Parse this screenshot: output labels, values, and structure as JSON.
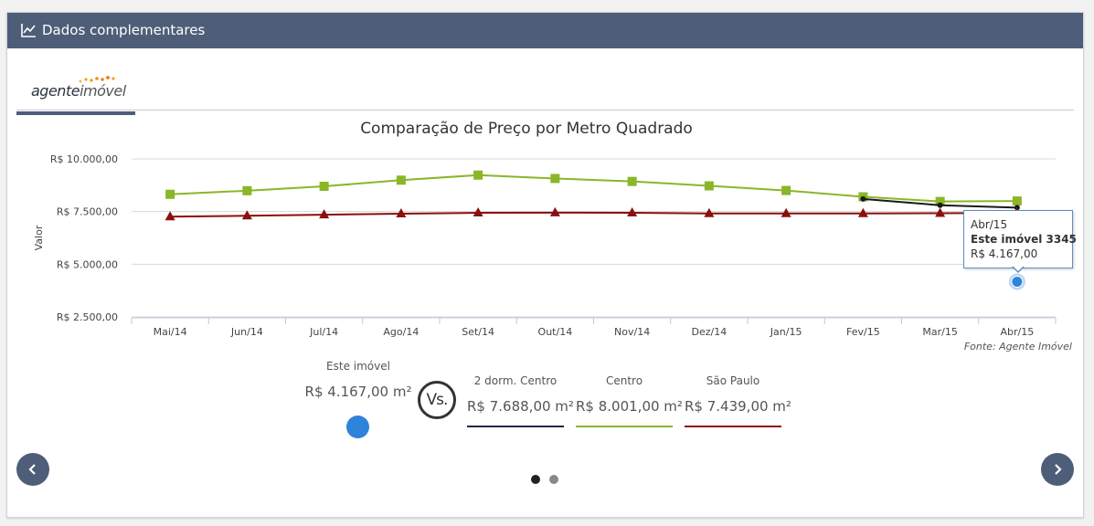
{
  "header": {
    "title": "Dados complementares",
    "icon": "line-chart-icon"
  },
  "tab": {
    "logo_text": "agenteimóvel",
    "logo_part1": "agente",
    "logo_part2": "imóvel"
  },
  "chart_data": {
    "type": "line",
    "title": "Comparação de Preço por Metro Quadrado",
    "ylabel": "Valor",
    "xlabel": "",
    "categories": [
      "Mai/14",
      "Jun/14",
      "Jul/14",
      "Ago/14",
      "Set/14",
      "Out/14",
      "Nov/14",
      "Dez/14",
      "Jan/15",
      "Fev/15",
      "Mar/15",
      "Abr/15"
    ],
    "ytick_labels": [
      "R$ 2.500,00",
      "R$ 5.000,00",
      "R$ 7.500,00",
      "R$ 10.000,00"
    ],
    "ytick_values": [
      2500,
      5000,
      7500,
      10000
    ],
    "ylim": [
      2500,
      10000
    ],
    "grid": true,
    "series": [
      {
        "name": "Centro",
        "color": "#8ab628",
        "marker": "square",
        "values": [
          8320,
          8490,
          8700,
          8990,
          9230,
          9070,
          8930,
          8720,
          8500,
          8200,
          7980,
          8001
        ]
      },
      {
        "name": "2 dorm. Centro",
        "color": "#1a1a1a",
        "marker": "circle",
        "values": [
          null,
          null,
          null,
          null,
          null,
          null,
          null,
          null,
          null,
          8100,
          7800,
          7688
        ]
      },
      {
        "name": "São Paulo",
        "color": "#8b0f0f",
        "marker": "triangle",
        "values": [
          7260,
          7300,
          7350,
          7400,
          7440,
          7450,
          7440,
          7410,
          7410,
          7410,
          7420,
          7439
        ]
      },
      {
        "name": "Este imóvel",
        "color": "#2d84d9",
        "marker": "circle",
        "values": [
          null,
          null,
          null,
          null,
          null,
          null,
          null,
          null,
          null,
          null,
          null,
          4167
        ]
      }
    ],
    "source": "Fonte: Agente Imóvel",
    "tooltip": {
      "date": "Abr/15",
      "label": "Este imóvel 3345",
      "value": "R$ 4.167,00"
    }
  },
  "comparison": {
    "subject": {
      "name": "Este imóvel",
      "value": "R$ 4.167,00 m²",
      "color": "#2d84d9"
    },
    "vs_label": "Vs.",
    "others": [
      {
        "name": "2 dorm. Centro",
        "value": "R$ 7.688,00 m²",
        "color": "#1c2a44"
      },
      {
        "name": "Centro",
        "value": "R$ 8.001,00 m²",
        "color": "#8ab628"
      },
      {
        "name": "São Paulo",
        "value": "R$ 7.439,00 m²",
        "color": "#8b0f0f"
      }
    ]
  },
  "pager": {
    "active_index": 0,
    "count": 2
  },
  "nav": {
    "prev_icon": "chevron-left-icon",
    "next_icon": "chevron-right-icon"
  }
}
